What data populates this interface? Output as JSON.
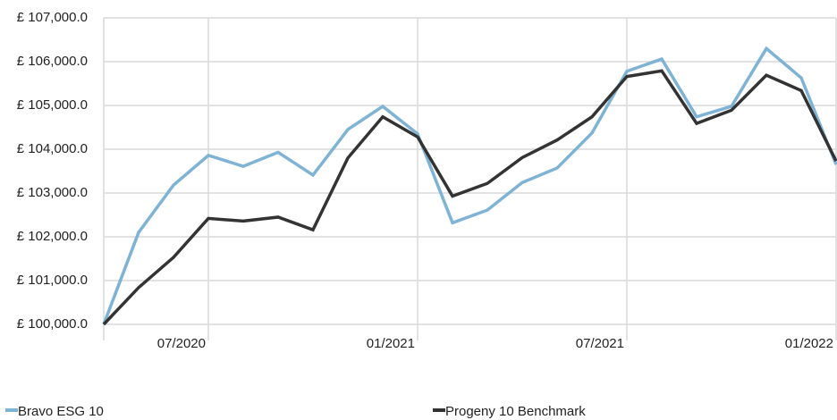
{
  "chart_data": {
    "type": "line",
    "categories": [
      null,
      null,
      null,
      "07/2020",
      null,
      null,
      null,
      null,
      null,
      "01/2021",
      null,
      null,
      null,
      null,
      null,
      "07/2021",
      null,
      null,
      null,
      null,
      null,
      "01/2022"
    ],
    "series": [
      {
        "name": "Bravo ESG 10",
        "color": "#7fb3d5",
        "values": [
          100000,
          102100,
          103180,
          103860,
          103610,
          103930,
          103410,
          104450,
          104980,
          104350,
          102320,
          102610,
          103240,
          103570,
          104370,
          105780,
          106060,
          104740,
          104980,
          106300,
          105630,
          103650
        ]
      },
      {
        "name": "Progeny 10 Benchmark",
        "color": "#333333",
        "values": [
          100000,
          100840,
          101530,
          102420,
          102360,
          102450,
          102160,
          103800,
          104740,
          104280,
          102930,
          103220,
          103810,
          104210,
          104740,
          105660,
          105790,
          104590,
          104890,
          105690,
          105340,
          103730
        ]
      }
    ],
    "ylim": [
      100000,
      107000
    ],
    "yticks": [
      {
        "value": 100000,
        "label": "£ 100,000.0"
      },
      {
        "value": 101000,
        "label": "£ 101,000.0"
      },
      {
        "value": 102000,
        "label": "£ 102,000.0"
      },
      {
        "value": 103000,
        "label": "£ 103,000.0"
      },
      {
        "value": 104000,
        "label": "£ 104,000.0"
      },
      {
        "value": 105000,
        "label": "£ 105,000.0"
      },
      {
        "value": 106000,
        "label": "£ 106,000.0"
      },
      {
        "value": 107000,
        "label": "£ 107,000.0"
      }
    ],
    "grid": true
  }
}
